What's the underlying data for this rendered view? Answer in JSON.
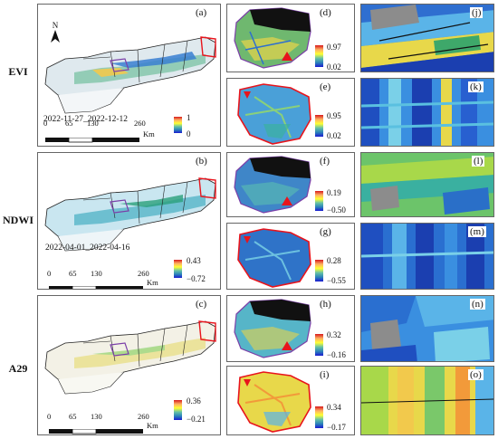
{
  "rows": [
    {
      "label": "EVI",
      "map": {
        "id": "(a)",
        "date": "2022-11-27_2022-12-12",
        "cb_max": "1",
        "cb_min": "0"
      },
      "zoom1": {
        "id": "(d)",
        "cb_max": "0.97",
        "cb_min": "0.02"
      },
      "zoom2": {
        "id": "(e)",
        "cb_max": "0.95",
        "cb_min": "0.02"
      },
      "img1": {
        "id": "(j)"
      },
      "img2": {
        "id": "(k)"
      }
    },
    {
      "label": "NDWI",
      "map": {
        "id": "(b)",
        "date": "2022-04-01_2022-04-16",
        "cb_max": "0.43",
        "cb_min": "−0.72"
      },
      "zoom1": {
        "id": "(f)",
        "cb_max": "0.19",
        "cb_min": "−0.50"
      },
      "zoom2": {
        "id": "(g)",
        "cb_max": "0.28",
        "cb_min": "−0.55"
      },
      "img1": {
        "id": "(l)"
      },
      "img2": {
        "id": "(m)"
      }
    },
    {
      "label": "A29",
      "map": {
        "id": "(c)",
        "date": "",
        "cb_max": "0.36",
        "cb_min": "−0.21"
      },
      "zoom1": {
        "id": "(h)",
        "cb_max": "0.32",
        "cb_min": "−0.16"
      },
      "zoom2": {
        "id": "(i)",
        "cb_max": "0.34",
        "cb_min": "−0.17"
      },
      "img1": {
        "id": "(n)"
      },
      "img2": {
        "id": "(o)"
      }
    }
  ],
  "north_arrow": "N",
  "scalebar": {
    "ticks": [
      "0",
      "65",
      "130",
      "260"
    ],
    "unit": "Km"
  },
  "colors": {
    "high": "#d7191c",
    "mid": "#ffff33",
    "low": "#1b1bd0",
    "mask": "#111111",
    "outline_red": "#e8141c",
    "outline_purple": "#7b3fa8"
  }
}
